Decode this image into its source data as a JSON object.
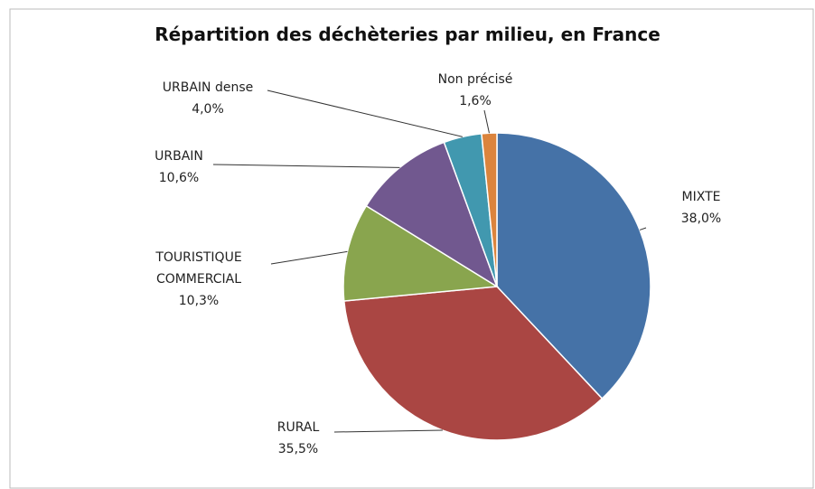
{
  "chart_data": {
    "type": "pie",
    "title": "Répartition des déchèteries par milieu, en France",
    "categories": [
      "MIXTE",
      "RURAL",
      "TOURISTIQUE COMMERCIAL",
      "URBAIN",
      "URBAIN dense",
      "Non précisé"
    ],
    "values": [
      38.0,
      35.5,
      10.3,
      10.6,
      4.0,
      1.6
    ],
    "value_labels": [
      "38,0%",
      "35,5%",
      "10,3%",
      "10,6%",
      "4,0%",
      "1,6%"
    ],
    "colors": [
      "#4572a7",
      "#aa4643",
      "#89a54e",
      "#71588f",
      "#4198af",
      "#db843d"
    ]
  }
}
